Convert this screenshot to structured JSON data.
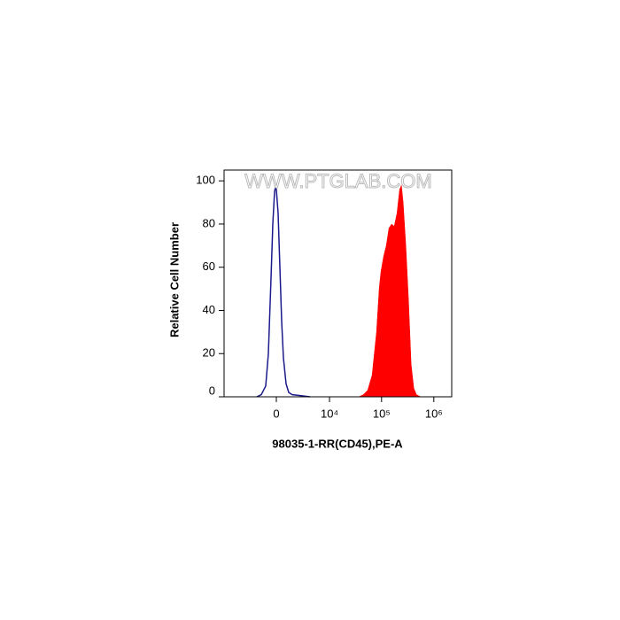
{
  "chart_data": {
    "type": "histogram-overlay",
    "annotations": [
      "WWW.PTGLAB.COM"
    ],
    "x_label": "98035-1-RR(CD45),PE-A",
    "y_label": "Relative Cell Number",
    "xscale": "biexponential",
    "xlim": [
      -9600,
      2200000
    ],
    "xticks": [
      0,
      {
        "value": 10000,
        "label": "10⁴"
      },
      {
        "value": 100000,
        "label": "10⁵"
      },
      {
        "value": 1000000,
        "label": "10⁶"
      }
    ],
    "ylim": [
      0,
      105
    ],
    "yticks": [
      0,
      20,
      40,
      60,
      80,
      100
    ],
    "series": [
      {
        "color": "#1a1a8c",
        "style": "line",
        "x": [
          -1876,
          -1385,
          -943,
          -697,
          -458,
          -304,
          -152,
          -76,
          0,
          152,
          304,
          458,
          617,
          860,
          1115,
          1480,
          2574,
          4060
        ],
        "values": [
          0,
          1,
          5,
          20,
          55,
          80,
          95,
          97,
          96,
          85,
          60,
          35,
          18,
          6,
          2,
          1,
          0.5,
          0
        ]
      },
      {
        "color": "#ff0000",
        "style": "area",
        "x": [
          36700,
          44600,
          54200,
          65900,
          80100,
          90100,
          97400,
          109600,
          123200,
          138500,
          155600,
          175000,
          196900,
          221400,
          239400,
          258800,
          291000,
          327300,
          368200,
          414000,
          465600,
          566100
        ],
        "values": [
          0,
          1,
          3,
          10,
          30,
          50,
          58,
          65,
          70,
          78,
          80,
          79,
          85,
          96,
          98,
          90,
          70,
          45,
          15,
          4,
          1,
          0
        ]
      }
    ]
  }
}
